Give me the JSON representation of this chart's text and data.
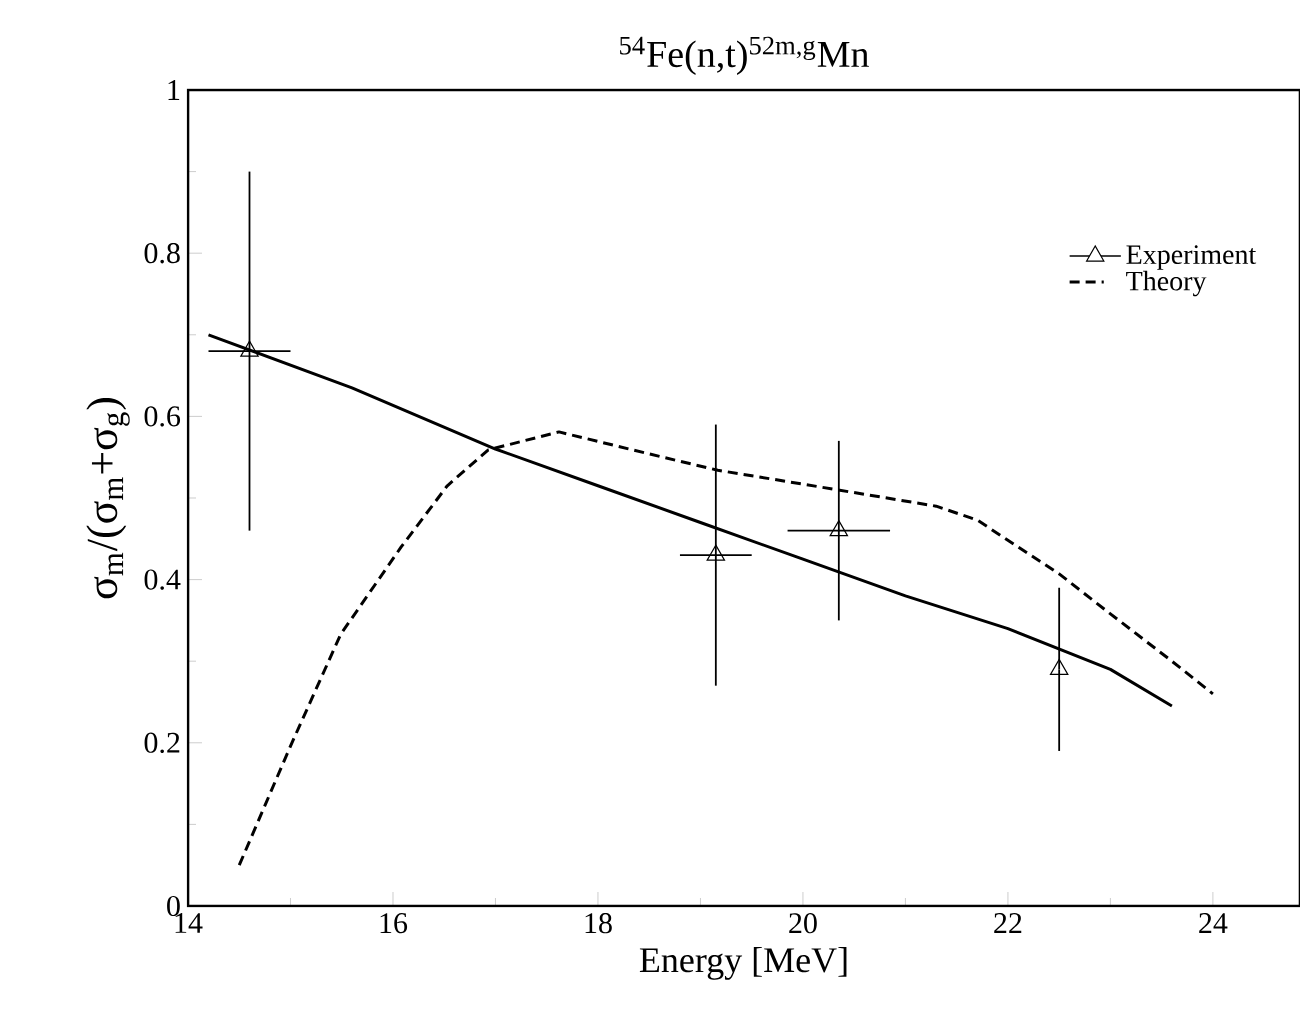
{
  "chart_data": {
    "type": "scatter",
    "title": "$^{54}$Fe(n,t)$^{52m,g}$Mn",
    "xlabel": "Energy [MeV]",
    "ylabel": "σ$_{m}$/(σ$_{m}$+σ$_{g}$)",
    "xlim": [
      14,
      24.85
    ],
    "ylim": [
      0,
      1
    ],
    "xticks": [
      14,
      16,
      18,
      20,
      22,
      24
    ],
    "yticks": [
      0,
      0.2,
      0.4,
      0.6,
      0.8,
      1
    ],
    "legend": "top right",
    "grid": false,
    "series": [
      {
        "name": "Experiment",
        "marker": "triangle",
        "color": "#000000",
        "x": [
          14.6,
          19.15,
          20.35,
          22.5
        ],
        "values": [
          0.68,
          0.43,
          0.46,
          0.29
        ],
        "errors": [
          [
            0.46,
            0.9
          ],
          [
            0.27,
            0.59
          ],
          [
            0.35,
            0.57
          ],
          [
            0.19,
            0.39
          ]
        ],
        "xerrors": [
          [
            14.2,
            15.0
          ],
          [
            18.8,
            19.5
          ],
          [
            19.85,
            20.85
          ],
          null
        ]
      },
      {
        "type": "line",
        "line_style": "solid",
        "color": "#000000",
        "x": [
          14.2,
          15.6,
          17,
          18,
          19,
          20,
          21,
          22,
          23,
          23.6
        ],
        "values": [
          0.7,
          0.635,
          0.56,
          0.515,
          0.47,
          0.425,
          0.38,
          0.34,
          0.29,
          0.245
        ]
      },
      {
        "name": "Theory",
        "type": "line",
        "line_style": "dashed",
        "color": "#000000",
        "x": [
          14.5,
          15.0,
          15.49,
          16.08,
          16.53,
          16.93,
          17.62,
          18.5,
          19.17,
          20.0,
          21.3,
          21.7,
          22.5,
          23.0,
          23.6,
          24.0
        ],
        "values": [
          0.05,
          0.196,
          0.333,
          0.44,
          0.515,
          0.559,
          0.581,
          0.554,
          0.534,
          0.517,
          0.49,
          0.473,
          0.407,
          0.358,
          0.3,
          0.26
        ]
      }
    ]
  }
}
